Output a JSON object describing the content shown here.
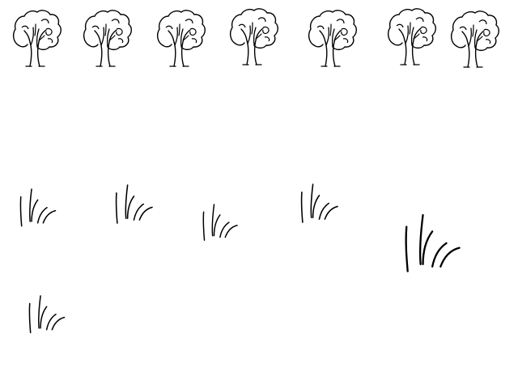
{
  "scene": {
    "background": "#ffffff",
    "stroke_color": "#000000",
    "trees": [
      {
        "icon": "tree-icon"
      },
      {
        "icon": "tree-icon"
      },
      {
        "icon": "tree-icon"
      },
      {
        "icon": "tree-icon"
      },
      {
        "icon": "tree-icon"
      },
      {
        "icon": "tree-icon"
      },
      {
        "icon": "tree-icon"
      }
    ],
    "grass_tufts": [
      {
        "icon": "grass-tuft-icon"
      },
      {
        "icon": "grass-tuft-icon"
      },
      {
        "icon": "grass-tuft-icon"
      },
      {
        "icon": "grass-tuft-icon"
      },
      {
        "icon": "grass-tuft-icon"
      },
      {
        "icon": "grass-tuft-icon"
      }
    ]
  }
}
